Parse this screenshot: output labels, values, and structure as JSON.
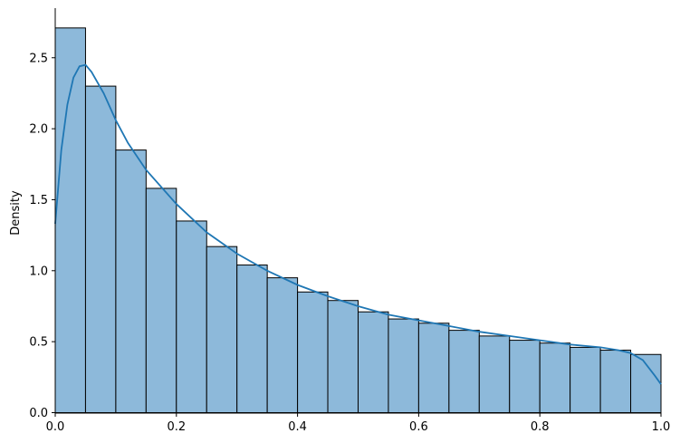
{
  "chart_data": {
    "type": "bar",
    "title": "",
    "xlabel": "",
    "ylabel": "Density",
    "xlim": [
      0,
      1.0
    ],
    "ylim": [
      0,
      2.85
    ],
    "grid": false,
    "xticks": [
      "0.0",
      "0.2",
      "0.4",
      "0.6",
      "0.8",
      "1.0"
    ],
    "yticks": [
      "0.0",
      "0.5",
      "1.0",
      "1.5",
      "2.0",
      "2.5"
    ],
    "bin_width": 0.05,
    "bin_edges_start": [
      0,
      0.05,
      0.1,
      0.15,
      0.2,
      0.25,
      0.3,
      0.35,
      0.4,
      0.45,
      0.5,
      0.55,
      0.6,
      0.65,
      0.7,
      0.75,
      0.8,
      0.85,
      0.9,
      0.95
    ],
    "values": [
      2.71,
      2.3,
      1.85,
      1.58,
      1.35,
      1.17,
      1.04,
      0.95,
      0.85,
      0.79,
      0.71,
      0.66,
      0.63,
      0.58,
      0.54,
      0.51,
      0.49,
      0.46,
      0.44,
      0.41
    ],
    "kde": {
      "x": [
        0,
        0.01,
        0.02,
        0.03,
        0.04,
        0.05,
        0.06,
        0.08,
        0.1,
        0.12,
        0.15,
        0.2,
        0.25,
        0.3,
        0.35,
        0.4,
        0.45,
        0.5,
        0.55,
        0.6,
        0.65,
        0.7,
        0.75,
        0.8,
        0.85,
        0.9,
        0.93,
        0.95,
        0.97,
        0.99,
        1.0
      ],
      "y": [
        1.33,
        1.85,
        2.17,
        2.36,
        2.44,
        2.45,
        2.4,
        2.25,
        2.06,
        1.9,
        1.71,
        1.47,
        1.27,
        1.12,
        1.0,
        0.9,
        0.82,
        0.75,
        0.69,
        0.65,
        0.61,
        0.57,
        0.54,
        0.51,
        0.48,
        0.46,
        0.44,
        0.42,
        0.37,
        0.26,
        0.2
      ]
    },
    "colors": {
      "bar_fill": "#8db9da",
      "bar_edge": "#000000",
      "kde_line": "#1f77b4"
    }
  }
}
